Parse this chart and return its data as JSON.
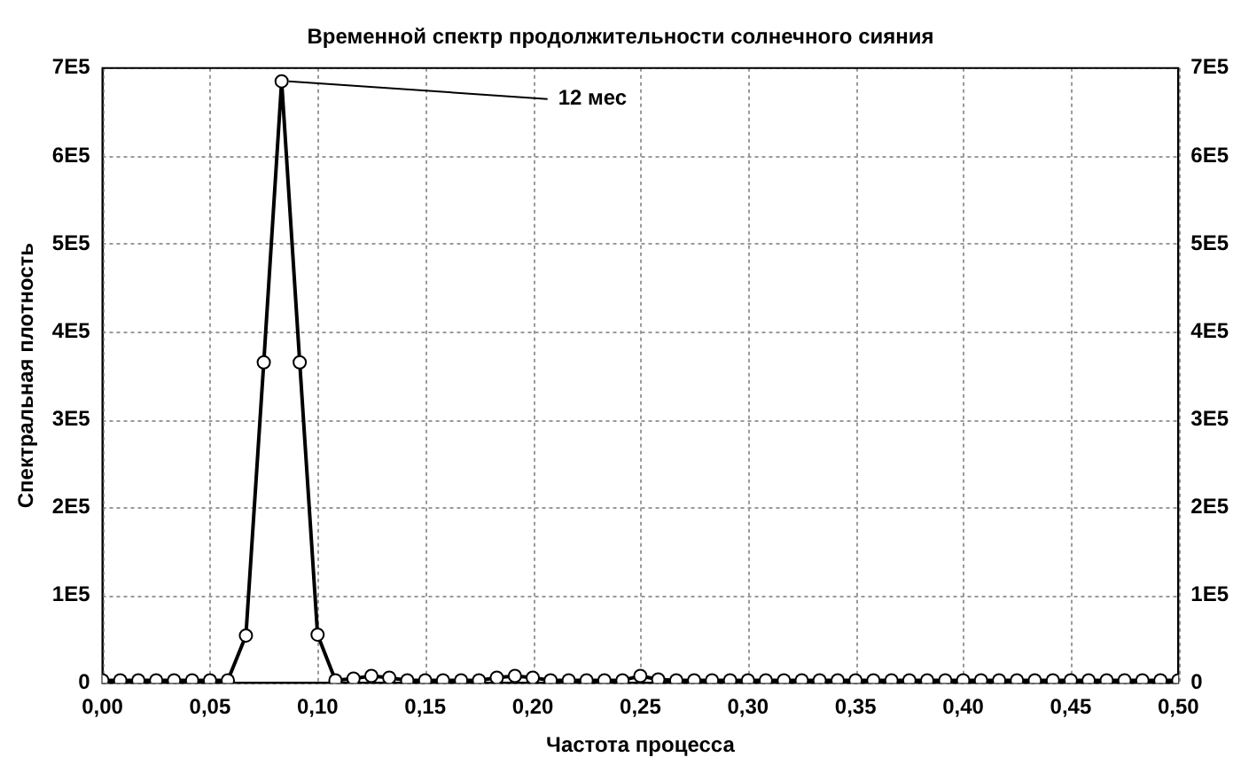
{
  "chart_data": {
    "type": "line",
    "title": "Временной спектр продолжительности солнечного сияния",
    "xlabel": "Частота процесса",
    "ylabel": "Спектральная плотность",
    "x": [
      0,
      0.0083,
      0.0167,
      0.025,
      0.0333,
      0.0417,
      0.05,
      0.0583,
      0.0667,
      0.075,
      0.0833,
      0.0917,
      0.1,
      0.1083,
      0.1167,
      0.125,
      0.1333,
      0.1417,
      0.15,
      0.1583,
      0.1667,
      0.175,
      0.1833,
      0.1917,
      0.2,
      0.2083,
      0.2167,
      0.225,
      0.2333,
      0.2417,
      0.25,
      0.2583,
      0.2667,
      0.275,
      0.2833,
      0.2917,
      0.3,
      0.3083,
      0.3167,
      0.325,
      0.3333,
      0.3417,
      0.35,
      0.3583,
      0.3667,
      0.375,
      0.3833,
      0.3917,
      0.4,
      0.4083,
      0.4167,
      0.425,
      0.4333,
      0.4417,
      0.45,
      0.4583,
      0.4667,
      0.475,
      0.4833,
      0.4917,
      0.5
    ],
    "series": [
      {
        "color": "#000000",
        "values": [
          3000,
          3000,
          3000,
          3000,
          3000,
          3000,
          3000,
          3000,
          54000,
          365000,
          685000,
          365000,
          55000,
          3000,
          5000,
          8000,
          6000,
          3000,
          3000,
          3000,
          3000,
          3000,
          6000,
          8000,
          6000,
          3000,
          3000,
          3000,
          3000,
          3000,
          8000,
          4000,
          3000,
          3000,
          3000,
          3000,
          3000,
          3000,
          3000,
          3000,
          3000,
          3000,
          3000,
          3000,
          3000,
          3000,
          3000,
          3000,
          3000,
          3000,
          3000,
          3000,
          3000,
          3000,
          3000,
          3000,
          3000,
          3000,
          3000,
          3000,
          3000
        ]
      }
    ],
    "xlim": [
      0,
      0.5
    ],
    "xticks": [
      {
        "value": 0,
        "label": "0,00"
      },
      {
        "value": 0.05,
        "label": "0,05"
      },
      {
        "value": 0.1,
        "label": "0,10"
      },
      {
        "value": 0.15,
        "label": "0,15"
      },
      {
        "value": 0.2,
        "label": "0,20"
      },
      {
        "value": 0.25,
        "label": "0,25"
      },
      {
        "value": 0.3,
        "label": "0,30"
      },
      {
        "value": 0.35,
        "label": "0,35"
      },
      {
        "value": 0.4,
        "label": "0,40"
      },
      {
        "value": 0.45,
        "label": "0,45"
      },
      {
        "value": 0.5,
        "label": "0,50"
      }
    ],
    "ylim": [
      0,
      700000
    ],
    "yticks": [
      0,
      {
        "value": 100000,
        "label": "1E5"
      },
      {
        "value": 200000,
        "label": "2E5"
      },
      {
        "value": 300000,
        "label": "3E5"
      },
      {
        "value": 400000,
        "label": "4E5"
      },
      {
        "value": 500000,
        "label": "5E5"
      },
      {
        "value": 600000,
        "label": "6E5"
      },
      {
        "value": 700000,
        "label": "7E5"
      }
    ],
    "y2lim": [
      0,
      700000
    ],
    "y2ticks": [
      0,
      {
        "value": 100000,
        "label": "1E5"
      },
      {
        "value": 200000,
        "label": "2E5"
      },
      {
        "value": 300000,
        "label": "3E5"
      },
      {
        "value": 400000,
        "label": "4E5"
      },
      {
        "value": 500000,
        "label": "5E5"
      },
      {
        "value": 600000,
        "label": "6E5"
      },
      {
        "value": 700000,
        "label": "7E5"
      }
    ],
    "annotations": [
      {
        "text": "12 мес",
        "x": 0.0833,
        "y": 685000
      }
    ],
    "grid": true,
    "legend": false,
    "marker": "circle",
    "line_style": "solid"
  }
}
